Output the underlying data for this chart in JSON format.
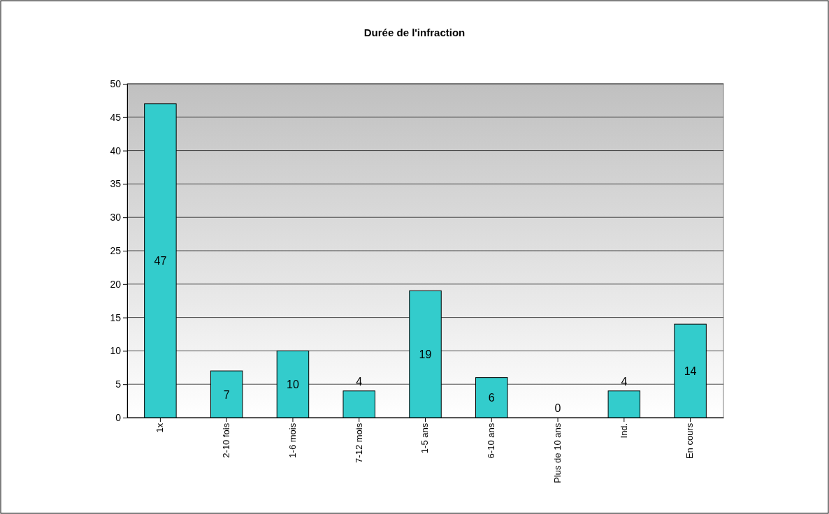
{
  "chart_data": {
    "type": "bar",
    "title": "Durée de l'infraction",
    "categories": [
      "1x",
      "2-10 fois",
      "1-6 mois",
      "7-12 mois",
      "1-5 ans",
      "6-10 ans",
      "Plus de 10 ans",
      "Ind.",
      "En cours"
    ],
    "values": [
      47,
      7,
      10,
      4,
      19,
      6,
      0,
      4,
      14
    ],
    "color": "#33cccc",
    "ylim": [
      0,
      50
    ],
    "yticks": [
      0,
      5,
      10,
      15,
      20,
      25,
      30,
      35,
      40,
      45,
      50
    ],
    "grid": "y",
    "data_labels": true
  }
}
